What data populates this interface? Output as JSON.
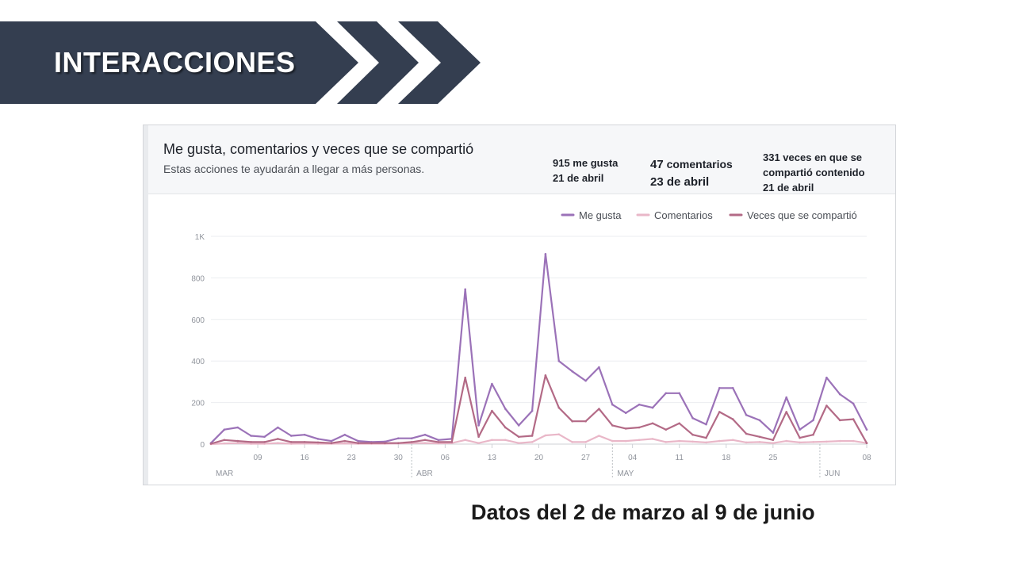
{
  "header": {
    "title": "INTERACCIONES"
  },
  "colors": {
    "banner": "#343e50",
    "likes": "#9b72b8",
    "comments": "#e9b7c8",
    "shares": "#b36a86"
  },
  "panel": {
    "title": "Me gusta, comentarios y veces que se compartió",
    "subtitle": "Estas acciones te ayudarán a llegar a más personas."
  },
  "annotations": {
    "likes": {
      "value": "915 me gusta",
      "date": "21 de abril"
    },
    "comments": {
      "value_number": "47",
      "value_word": "comentarios",
      "date": "23 de abril"
    },
    "shares": {
      "line1": "331 veces en que se",
      "line2": "compartió contenido",
      "date": "21 de abril"
    }
  },
  "footer": {
    "caption": "Datos del 2 de marzo al 9 de junio"
  },
  "chart_data": {
    "type": "line",
    "legend_position": "top-right",
    "grid": true,
    "ylim": [
      0,
      1000
    ],
    "y_ticks": [
      {
        "value": 0,
        "label": "0"
      },
      {
        "value": 200,
        "label": "200"
      },
      {
        "value": 400,
        "label": "400"
      },
      {
        "value": 600,
        "label": "600"
      },
      {
        "value": 800,
        "label": "800"
      },
      {
        "value": 1000,
        "label": "1K"
      }
    ],
    "x_start": "2 mar",
    "x_end": "9 jun",
    "x_day_ticks": [
      {
        "day": 7,
        "label": "09"
      },
      {
        "day": 14,
        "label": "16"
      },
      {
        "day": 21,
        "label": "23"
      },
      {
        "day": 28,
        "label": "30"
      },
      {
        "day": 35,
        "label": "06"
      },
      {
        "day": 42,
        "label": "13"
      },
      {
        "day": 49,
        "label": "20"
      },
      {
        "day": 56,
        "label": "27"
      },
      {
        "day": 63,
        "label": "04"
      },
      {
        "day": 70,
        "label": "11"
      },
      {
        "day": 77,
        "label": "18"
      },
      {
        "day": 84,
        "label": "25"
      },
      {
        "day": 98,
        "label": "08"
      }
    ],
    "x_month_ticks": [
      {
        "day": 0,
        "label": "MAR"
      },
      {
        "day": 30,
        "label": "ABR"
      },
      {
        "day": 60,
        "label": "MAY"
      },
      {
        "day": 91,
        "label": "JUN"
      }
    ],
    "series": [
      {
        "name": "Me gusta",
        "points": [
          [
            0,
            5
          ],
          [
            2,
            70
          ],
          [
            4,
            80
          ],
          [
            6,
            40
          ],
          [
            8,
            35
          ],
          [
            10,
            80
          ],
          [
            12,
            40
          ],
          [
            14,
            45
          ],
          [
            16,
            25
          ],
          [
            18,
            15
          ],
          [
            20,
            45
          ],
          [
            22,
            15
          ],
          [
            24,
            10
          ],
          [
            26,
            12
          ],
          [
            28,
            28
          ],
          [
            30,
            28
          ],
          [
            32,
            45
          ],
          [
            34,
            20
          ],
          [
            36,
            25
          ],
          [
            38,
            745
          ],
          [
            40,
            90
          ],
          [
            42,
            290
          ],
          [
            44,
            170
          ],
          [
            46,
            90
          ],
          [
            48,
            160
          ],
          [
            50,
            915
          ],
          [
            52,
            400
          ],
          [
            54,
            350
          ],
          [
            56,
            305
          ],
          [
            58,
            370
          ],
          [
            60,
            190
          ],
          [
            62,
            150
          ],
          [
            64,
            190
          ],
          [
            66,
            175
          ],
          [
            68,
            245
          ],
          [
            70,
            245
          ],
          [
            72,
            125
          ],
          [
            74,
            95
          ],
          [
            76,
            270
          ],
          [
            78,
            270
          ],
          [
            80,
            140
          ],
          [
            82,
            115
          ],
          [
            84,
            55
          ],
          [
            86,
            225
          ],
          [
            88,
            70
          ],
          [
            90,
            115
          ],
          [
            92,
            320
          ],
          [
            94,
            240
          ],
          [
            96,
            195
          ],
          [
            98,
            70
          ]
        ]
      },
      {
        "name": "Comentarios",
        "points": [
          [
            0,
            0
          ],
          [
            2,
            3
          ],
          [
            4,
            5
          ],
          [
            6,
            2
          ],
          [
            8,
            2
          ],
          [
            10,
            5
          ],
          [
            12,
            2
          ],
          [
            14,
            3
          ],
          [
            16,
            2
          ],
          [
            18,
            2
          ],
          [
            20,
            3
          ],
          [
            22,
            2
          ],
          [
            24,
            2
          ],
          [
            26,
            2
          ],
          [
            28,
            3
          ],
          [
            30,
            5
          ],
          [
            32,
            5
          ],
          [
            34,
            3
          ],
          [
            36,
            5
          ],
          [
            38,
            20
          ],
          [
            40,
            5
          ],
          [
            42,
            20
          ],
          [
            44,
            20
          ],
          [
            46,
            5
          ],
          [
            48,
            10
          ],
          [
            50,
            42
          ],
          [
            52,
            47
          ],
          [
            54,
            10
          ],
          [
            56,
            10
          ],
          [
            58,
            40
          ],
          [
            60,
            15
          ],
          [
            62,
            15
          ],
          [
            64,
            20
          ],
          [
            66,
            25
          ],
          [
            68,
            10
          ],
          [
            70,
            15
          ],
          [
            72,
            12
          ],
          [
            74,
            8
          ],
          [
            76,
            15
          ],
          [
            78,
            20
          ],
          [
            80,
            8
          ],
          [
            82,
            10
          ],
          [
            84,
            5
          ],
          [
            86,
            15
          ],
          [
            88,
            8
          ],
          [
            90,
            10
          ],
          [
            92,
            12
          ],
          [
            94,
            15
          ],
          [
            96,
            15
          ],
          [
            98,
            5
          ]
        ]
      },
      {
        "name": "Veces que se compartió",
        "points": [
          [
            0,
            2
          ],
          [
            2,
            20
          ],
          [
            4,
            15
          ],
          [
            6,
            10
          ],
          [
            8,
            10
          ],
          [
            10,
            25
          ],
          [
            12,
            10
          ],
          [
            14,
            10
          ],
          [
            16,
            8
          ],
          [
            18,
            5
          ],
          [
            20,
            15
          ],
          [
            22,
            5
          ],
          [
            24,
            5
          ],
          [
            26,
            5
          ],
          [
            28,
            5
          ],
          [
            30,
            10
          ],
          [
            32,
            20
          ],
          [
            34,
            10
          ],
          [
            36,
            10
          ],
          [
            38,
            320
          ],
          [
            40,
            35
          ],
          [
            42,
            160
          ],
          [
            44,
            80
          ],
          [
            46,
            35
          ],
          [
            48,
            40
          ],
          [
            50,
            331
          ],
          [
            52,
            175
          ],
          [
            54,
            110
          ],
          [
            56,
            110
          ],
          [
            58,
            170
          ],
          [
            60,
            90
          ],
          [
            62,
            75
          ],
          [
            64,
            80
          ],
          [
            66,
            100
          ],
          [
            68,
            70
          ],
          [
            70,
            100
          ],
          [
            72,
            45
          ],
          [
            74,
            30
          ],
          [
            76,
            155
          ],
          [
            78,
            120
          ],
          [
            80,
            50
          ],
          [
            82,
            35
          ],
          [
            84,
            20
          ],
          [
            86,
            155
          ],
          [
            88,
            30
          ],
          [
            90,
            45
          ],
          [
            92,
            185
          ],
          [
            94,
            115
          ],
          [
            96,
            120
          ],
          [
            98,
            5
          ]
        ]
      }
    ]
  }
}
